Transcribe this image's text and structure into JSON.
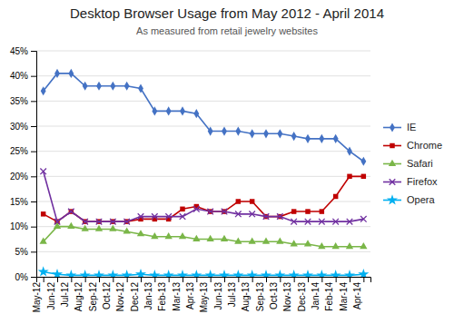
{
  "chart_data": {
    "type": "line",
    "title": "Desktop Browser Usage from May 2012 - April 2014",
    "subtitle": "As measured from retail jewelry websites",
    "categories": [
      "May-12",
      "Jun-12",
      "Jul-12",
      "Aug-12",
      "Sep-12",
      "Oct-12",
      "Nov-12",
      "Dec-12",
      "Jan-13",
      "Feb-13",
      "Mar-13",
      "Apr-13",
      "May-13",
      "Jun-13",
      "Jul-13",
      "Aug-13",
      "Sep-13",
      "Oct-13",
      "Nov-13",
      "Dec-13",
      "Jan-14",
      "Feb-14",
      "Mar-14",
      "Apr-14"
    ],
    "series": [
      {
        "name": "IE",
        "color": "#4472C4",
        "marker": "diamond",
        "values": [
          37,
          40.5,
          40.5,
          38,
          38,
          38,
          38,
          37.5,
          33,
          33,
          33,
          32.5,
          29,
          29,
          29,
          28.5,
          28.5,
          28.5,
          28,
          27.5,
          27.5,
          27.5,
          25,
          23
        ]
      },
      {
        "name": "Chrome",
        "color": "#C00000",
        "marker": "square",
        "values": [
          12.5,
          11,
          13,
          11,
          11,
          11,
          11,
          11.5,
          11.5,
          11.5,
          13.5,
          14,
          13,
          13,
          15,
          15,
          12,
          12,
          13,
          13,
          13,
          16,
          20,
          20
        ]
      },
      {
        "name": "Safari",
        "color": "#7AB648",
        "marker": "triangle",
        "values": [
          7,
          10,
          10,
          9.5,
          9.5,
          9.5,
          9,
          8.5,
          8,
          8,
          8,
          7.5,
          7.5,
          7.5,
          7,
          7,
          7,
          7,
          6.5,
          6.5,
          6,
          6,
          6,
          6
        ]
      },
      {
        "name": "Firefox",
        "color": "#7030A0",
        "marker": "x",
        "values": [
          21,
          11,
          13,
          11,
          11,
          11,
          11,
          12,
          12,
          12,
          12,
          13.5,
          13,
          13,
          12.5,
          12.5,
          12,
          12,
          11,
          11,
          11,
          11,
          11,
          11.5
        ]
      },
      {
        "name": "Opera",
        "color": "#00B0F0",
        "marker": "star",
        "values": [
          1,
          0.5,
          0.3,
          0.3,
          0.3,
          0.3,
          0.3,
          0.5,
          0.3,
          0.3,
          0.3,
          0.3,
          0.3,
          0.3,
          0.3,
          0.3,
          0.3,
          0.3,
          0.3,
          0.3,
          0.3,
          0.3,
          0.3,
          0.5
        ]
      }
    ],
    "ylim": [
      0,
      45
    ],
    "yticks": [
      {
        "value": 0,
        "label": "0%"
      },
      {
        "value": 5,
        "label": "5%"
      },
      {
        "value": 10,
        "label": "10%"
      },
      {
        "value": 15,
        "label": "15%"
      },
      {
        "value": 20,
        "label": "20%"
      },
      {
        "value": 25,
        "label": "25%"
      },
      {
        "value": 30,
        "label": "30%"
      },
      {
        "value": 35,
        "label": "35%"
      },
      {
        "value": 40,
        "label": "40%"
      },
      {
        "value": 45,
        "label": "45%"
      }
    ],
    "grid": true,
    "legend": "right"
  }
}
